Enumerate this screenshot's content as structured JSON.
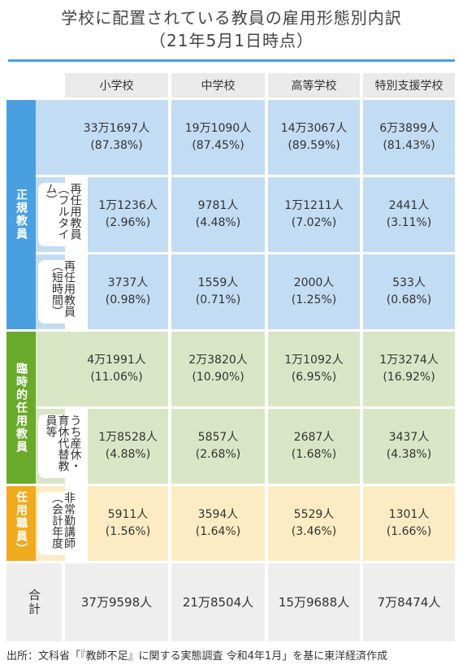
{
  "title": {
    "line1": "学校に配置されている教員の雇用形態別内訳",
    "line2": "（21年5月1日時点）"
  },
  "chart_data": {
    "type": "table",
    "columns": [
      "小学校",
      "中学校",
      "高等学校",
      "特別支援学校"
    ],
    "groups": [
      {
        "label": "正規教員",
        "color": "#4a9fe0",
        "rows": [
          {
            "label": "",
            "cells": [
              {
                "count": "33万1697人",
                "pct": "(87.38%)"
              },
              {
                "count": "19万1090人",
                "pct": "(87.45%)"
              },
              {
                "count": "14万3067人",
                "pct": "(89.59%)"
              },
              {
                "count": "6万3899人",
                "pct": "(81.43%)"
              }
            ]
          },
          {
            "label": "再任用教員（フルタイム）",
            "cells": [
              {
                "count": "1万1236人",
                "pct": "(2.96%)"
              },
              {
                "count": "9781人",
                "pct": "(4.48%)"
              },
              {
                "count": "1万1211人",
                "pct": "(7.02%)"
              },
              {
                "count": "2441人",
                "pct": "(3.11%)"
              }
            ]
          },
          {
            "label": "再任用教員（短時間）",
            "cells": [
              {
                "count": "3737人",
                "pct": "(0.98%)"
              },
              {
                "count": "1559人",
                "pct": "(0.71%)"
              },
              {
                "count": "2000人",
                "pct": "(1.25%)"
              },
              {
                "count": "533人",
                "pct": "(0.68%)"
              }
            ]
          }
        ]
      },
      {
        "label": "臨時的任用教員",
        "color": "#6aaa2a",
        "rows": [
          {
            "label": "",
            "cells": [
              {
                "count": "4万1991人",
                "pct": "(11.06%)"
              },
              {
                "count": "2万3820人",
                "pct": "(10.90%)"
              },
              {
                "count": "1万1092人",
                "pct": "(6.95%)"
              },
              {
                "count": "1万3274人",
                "pct": "(16.92%)"
              }
            ]
          },
          {
            "label": "うち産休・育休代替教員等",
            "cells": [
              {
                "count": "1万8528人",
                "pct": "(4.88%)"
              },
              {
                "count": "5857人",
                "pct": "(2.68%)"
              },
              {
                "count": "2687人",
                "pct": "(1.68%)"
              },
              {
                "count": "3437人",
                "pct": "(4.38%)"
              }
            ]
          }
        ]
      },
      {
        "label": "任用職員）",
        "color": "#f0aa1e",
        "rows": [
          {
            "label": "非常勤講師（会計年度",
            "cells": [
              {
                "count": "5911人",
                "pct": "(1.56%)"
              },
              {
                "count": "3594人",
                "pct": "(1.64%)"
              },
              {
                "count": "5529人",
                "pct": "(3.46%)"
              },
              {
                "count": "1301人",
                "pct": "(1.66%)"
              }
            ]
          }
        ]
      }
    ],
    "total": {
      "label": "合計",
      "cells": [
        "37万9598人",
        "21万8504人",
        "15万9688人",
        "7万8474人"
      ]
    }
  },
  "source": "出所：文科省「『教師不足』に関する実態調査 令和4年1月」を基に東洋経済作成"
}
